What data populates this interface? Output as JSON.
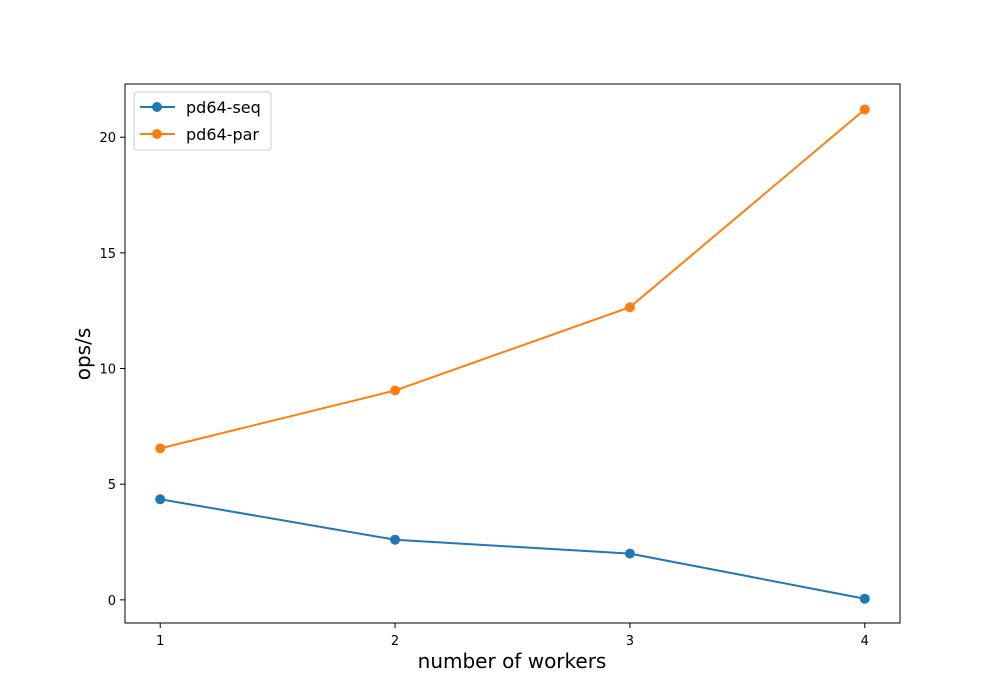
{
  "chart_data": {
    "type": "line",
    "title": "",
    "xlabel": "number of workers",
    "ylabel": "ops/s",
    "x": [
      1,
      2,
      3,
      4
    ],
    "x_ticks": [
      "1",
      "2",
      "3",
      "4"
    ],
    "y_ticks": [
      "0",
      "5",
      "10",
      "15",
      "20"
    ],
    "xlim": [
      0.85,
      4.15
    ],
    "ylim": [
      -1.0,
      22.3
    ],
    "grid": false,
    "legend": "top-left",
    "series": [
      {
        "name": "pd64-seq",
        "color": "#1f77b4",
        "values": [
          4.35,
          2.6,
          2.0,
          0.05
        ]
      },
      {
        "name": "pd64-par",
        "color": "#ff7f0e",
        "values": [
          6.55,
          9.05,
          12.65,
          21.2
        ]
      }
    ]
  }
}
